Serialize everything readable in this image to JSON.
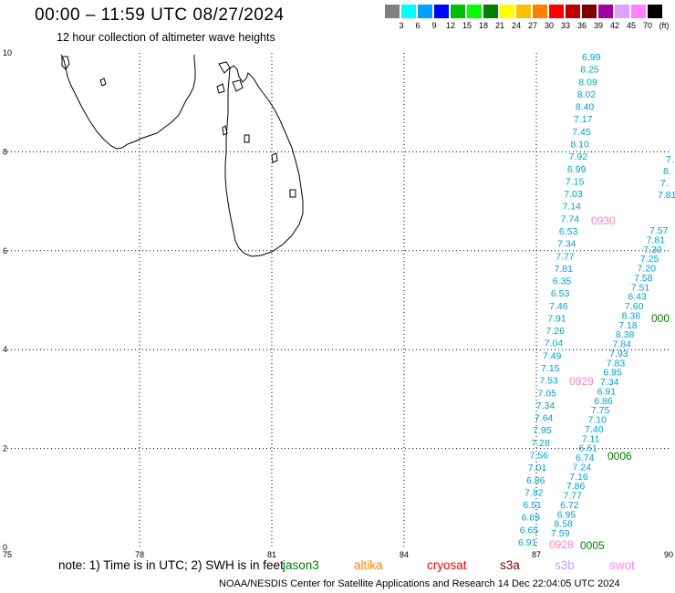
{
  "header": {
    "title": "00:00 – 11:59 UTC 08/27/2024",
    "subtitle": "12 hour collection of altimeter wave heights"
  },
  "colorbar": {
    "colors": [
      "#808080",
      "#00ffff",
      "#00a0ff",
      "#0000ff",
      "#00c000",
      "#00ff00",
      "#008000",
      "#ffff00",
      "#ffc000",
      "#ff8000",
      "#ff0000",
      "#c00000",
      "#800000",
      "#a000a0",
      "#e0a0ff",
      "#ff80ff",
      "#000000"
    ],
    "labels": [
      "3",
      "6",
      "9",
      "12",
      "15",
      "18",
      "21",
      "24",
      "27",
      "30",
      "33",
      "36",
      "39",
      "42",
      "45",
      "70",
      "(ft)"
    ]
  },
  "axes": {
    "x_ticks": [
      "75",
      "78",
      "81",
      "84",
      "87",
      "90"
    ],
    "y_ticks": [
      "0",
      "2",
      "4",
      "6",
      "8",
      "10"
    ]
  },
  "track_a": {
    "color": "#00a0d0",
    "values": [
      "6.99",
      "8.25",
      "8.09",
      "8.02",
      "8.40",
      "7.17",
      "7.45",
      "8.10",
      "7.92",
      "6.99",
      "7.15",
      "7.03",
      "7.14",
      "7.74",
      "6.53",
      "7.34",
      "7.77",
      "7.81",
      "6.35",
      "6.53",
      "7.46",
      "7.91",
      "7.26",
      "7.04",
      "7.49",
      "7.15",
      "7.53",
      "7.05",
      "7.34",
      "7.64",
      "7.95",
      "7.28",
      "7.56",
      "7.01",
      "6.86",
      "7.82",
      "6.51",
      "6.89",
      "6.65",
      "6.91"
    ]
  },
  "track_b": {
    "color": "#00a0d0",
    "values": [
      "7.57",
      "7.81",
      "7.39",
      "7.25",
      "7.20",
      "7.58",
      "7.51",
      "6.43",
      "7.60",
      "8.38",
      "7.18",
      "8.38",
      "7.84",
      "7.93",
      "7.83",
      "6.95",
      "7.34",
      "6.91",
      "6.86",
      "7.75",
      "7.10",
      "7.40",
      "7.11",
      "6.61",
      "6.74",
      "7.24",
      "7.16",
      "7.86",
      "7.77",
      "6.72",
      "6.95",
      "8.58",
      "7.59"
    ]
  },
  "track_b_edge": [
    "7.",
    "8.",
    "7.",
    "7.81"
  ],
  "time_labels": [
    {
      "text": "0930",
      "color": "#ff80c0"
    },
    {
      "text": "0929",
      "color": "#ff80c0"
    },
    {
      "text": "0928",
      "color": "#ff80c0"
    },
    {
      "text": "0006",
      "color": "#008000"
    },
    {
      "text": "0005",
      "color": "#008000"
    },
    {
      "text": "000",
      "color": "#008000"
    }
  ],
  "footer": {
    "note": "note:  1) Time is in UTC;  2) SWH is in feet",
    "credit": "NOAA/NESDIS Center for Satellite Applications and Research    14 Dec 22:04:05 UTC 2024"
  },
  "legend": [
    {
      "name": "jason3",
      "color": "#008000"
    },
    {
      "name": "altika",
      "color": "#ff8000"
    },
    {
      "name": "cryosat",
      "color": "#ff0000"
    },
    {
      "name": "s3a",
      "color": "#800000"
    },
    {
      "name": "s3b",
      "color": "#c0a0ff"
    },
    {
      "name": "swot",
      "color": "#ff80ff"
    }
  ]
}
